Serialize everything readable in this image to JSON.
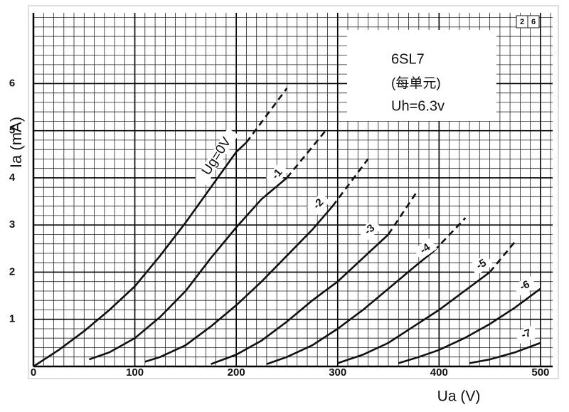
{
  "chart_data": {
    "type": "line",
    "title": "6SL7",
    "subtitle": "(每单元)",
    "annotation": "Uh=6.3v",
    "corner_label": [
      "2",
      "6"
    ],
    "x_label": "Ua (V)",
    "y_label": "Ia (mA)",
    "xlim": [
      0,
      512
    ],
    "ylim": [
      0,
      7.5
    ],
    "xticks": [
      0,
      100,
      200,
      300,
      400,
      500
    ],
    "yticks": [
      1,
      2,
      3,
      4,
      5,
      6
    ],
    "grid": true,
    "series": [
      {
        "name": "Ug=0V",
        "color": "#111111",
        "segments": [
          {
            "style": "solid",
            "x": [
              0,
              25,
              50,
              75,
              100,
              125,
              150,
              175,
              200,
              210
            ],
            "values": [
              0,
              0.35,
              0.75,
              1.2,
              1.7,
              2.35,
              3.05,
              3.8,
              4.55,
              4.75
            ]
          },
          {
            "style": "dashed",
            "x": [
              210,
              250
            ],
            "values": [
              4.75,
              5.9
            ]
          }
        ]
      },
      {
        "name": "-1",
        "color": "#111111",
        "segments": [
          {
            "style": "solid",
            "x": [
              55,
              75,
              100,
              125,
              150,
              175,
              200,
              225,
              250
            ],
            "values": [
              0.15,
              0.3,
              0.6,
              1.05,
              1.6,
              2.3,
              2.95,
              3.55,
              4.0
            ]
          },
          {
            "style": "dashed",
            "x": [
              250,
              290
            ],
            "values": [
              4.0,
              5.05
            ]
          }
        ]
      },
      {
        "name": "-2",
        "color": "#111111",
        "segments": [
          {
            "style": "solid",
            "x": [
              110,
              125,
              150,
              175,
              200,
              225,
              250,
              275,
              295
            ],
            "values": [
              0.1,
              0.2,
              0.45,
              0.85,
              1.3,
              1.8,
              2.35,
              2.9,
              3.4
            ]
          },
          {
            "style": "dashed",
            "x": [
              295,
              330
            ],
            "values": [
              3.4,
              4.4
            ]
          }
        ]
      },
      {
        "name": "-3",
        "color": "#111111",
        "segments": [
          {
            "style": "solid",
            "x": [
              175,
              200,
              225,
              250,
              275,
              300,
              325,
              350
            ],
            "values": [
              0.05,
              0.25,
              0.55,
              0.95,
              1.4,
              1.8,
              2.3,
              2.8
            ]
          },
          {
            "style": "dashed",
            "x": [
              350,
              378
            ],
            "values": [
              2.8,
              3.7
            ]
          }
        ]
      },
      {
        "name": "-4",
        "color": "#111111",
        "segments": [
          {
            "style": "solid",
            "x": [
              230,
              250,
              275,
              300,
              325,
              350,
              375,
              395
            ],
            "values": [
              0.05,
              0.2,
              0.45,
              0.8,
              1.2,
              1.65,
              2.1,
              2.45
            ]
          },
          {
            "style": "dashed",
            "x": [
              395,
              426
            ],
            "values": [
              2.45,
              3.15
            ]
          }
        ]
      },
      {
        "name": "-5",
        "color": "#111111",
        "segments": [
          {
            "style": "solid",
            "x": [
              300,
              325,
              350,
              375,
              400,
              425,
              450
            ],
            "values": [
              0.07,
              0.25,
              0.5,
              0.85,
              1.2,
              1.6,
              2.0
            ]
          },
          {
            "style": "dashed",
            "x": [
              450,
              475
            ],
            "values": [
              2.0,
              2.65
            ]
          }
        ]
      },
      {
        "name": "-6",
        "color": "#111111",
        "segments": [
          {
            "style": "solid",
            "x": [
              360,
              380,
              400,
              425,
              450,
              475,
              500
            ],
            "values": [
              0.07,
              0.2,
              0.35,
              0.6,
              0.9,
              1.25,
              1.65
            ]
          }
        ]
      },
      {
        "name": "-7",
        "color": "#111111",
        "segments": [
          {
            "style": "solid",
            "x": [
              430,
              450,
              475,
              500
            ],
            "values": [
              0.07,
              0.15,
              0.3,
              0.5
            ]
          }
        ]
      }
    ]
  }
}
